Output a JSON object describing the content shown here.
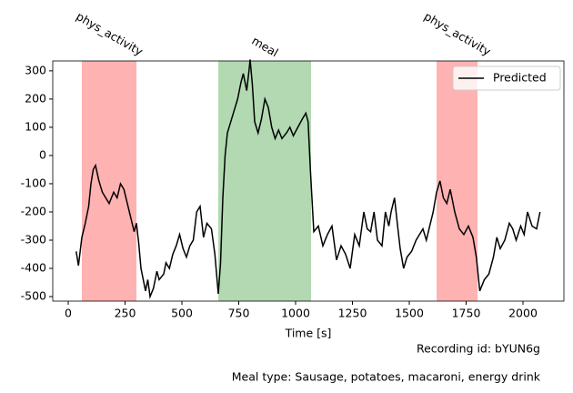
{
  "chart_data": {
    "type": "line",
    "xlabel": "Time [s]",
    "x": [
      35,
      45,
      60,
      75,
      90,
      100,
      110,
      120,
      135,
      150,
      165,
      180,
      200,
      215,
      230,
      245,
      260,
      275,
      290,
      300,
      310,
      320,
      340,
      350,
      360,
      375,
      390,
      400,
      420,
      430,
      445,
      460,
      475,
      490,
      505,
      520,
      535,
      550,
      565,
      580,
      595,
      610,
      630,
      645,
      660,
      670,
      680,
      690,
      700,
      715,
      730,
      745,
      760,
      770,
      785,
      795,
      800,
      810,
      820,
      835,
      850,
      865,
      880,
      895,
      910,
      925,
      940,
      960,
      975,
      990,
      1010,
      1030,
      1045,
      1055,
      1065,
      1080,
      1100,
      1120,
      1140,
      1160,
      1180,
      1200,
      1220,
      1240,
      1260,
      1280,
      1300,
      1315,
      1330,
      1345,
      1360,
      1380,
      1395,
      1410,
      1420,
      1435,
      1450,
      1460,
      1475,
      1490,
      1510,
      1530,
      1545,
      1560,
      1575,
      1590,
      1605,
      1620,
      1635,
      1650,
      1665,
      1680,
      1700,
      1720,
      1740,
      1760,
      1780,
      1795,
      1810,
      1830,
      1850,
      1870,
      1885,
      1900,
      1920,
      1940,
      1955,
      1970,
      1990,
      2005,
      2020,
      2040,
      2060,
      2075
    ],
    "series": [
      {
        "name": "Predicted",
        "color": "#000000",
        "values": [
          -340,
          -390,
          -290,
          -240,
          -180,
          -100,
          -50,
          -35,
          -90,
          -130,
          -150,
          -170,
          -130,
          -150,
          -100,
          -120,
          -170,
          -220,
          -270,
          -240,
          -310,
          -400,
          -480,
          -440,
          -500,
          -470,
          -410,
          -440,
          -420,
          -380,
          -400,
          -350,
          -320,
          -280,
          -330,
          -360,
          -320,
          -300,
          -200,
          -180,
          -290,
          -240,
          -260,
          -350,
          -490,
          -380,
          -150,
          0,
          80,
          120,
          160,
          200,
          260,
          290,
          230,
          300,
          340,
          250,
          120,
          80,
          130,
          200,
          170,
          100,
          60,
          90,
          60,
          80,
          100,
          70,
          100,
          130,
          150,
          120,
          -50,
          -270,
          -250,
          -320,
          -280,
          -250,
          -370,
          -320,
          -350,
          -400,
          -280,
          -320,
          -200,
          -260,
          -270,
          -200,
          -300,
          -320,
          -200,
          -250,
          -200,
          -150,
          -260,
          -330,
          -400,
          -360,
          -340,
          -300,
          -280,
          -260,
          -300,
          -250,
          -200,
          -130,
          -90,
          -150,
          -170,
          -120,
          -200,
          -260,
          -280,
          -250,
          -290,
          -360,
          -480,
          -440,
          -420,
          -360,
          -290,
          -330,
          -300,
          -240,
          -260,
          -300,
          -250,
          -280,
          -200,
          -250,
          -260,
          -200
        ]
      }
    ],
    "spans": [
      {
        "start": 60,
        "end": 300,
        "label": "phys_activity",
        "color": "#ff0000"
      },
      {
        "start": 660,
        "end": 1068,
        "label": "meal",
        "color": "#008000"
      },
      {
        "start": 1620,
        "end": 1800,
        "label": "phys_activity",
        "color": "#ff0000"
      }
    ],
    "xlim": [
      -68,
      2180
    ],
    "ylim": [
      -516,
      335
    ],
    "xticks": [
      0,
      250,
      500,
      750,
      1000,
      1250,
      1500,
      1750,
      2000
    ],
    "yticks": [
      -500,
      -400,
      -300,
      -200,
      -100,
      0,
      100,
      200,
      300
    ],
    "legend": "upper right",
    "annotations": [
      "Recording id: bYUN6g",
      "Meal type: Sausage, potatoes, macaroni, energy drink"
    ]
  }
}
